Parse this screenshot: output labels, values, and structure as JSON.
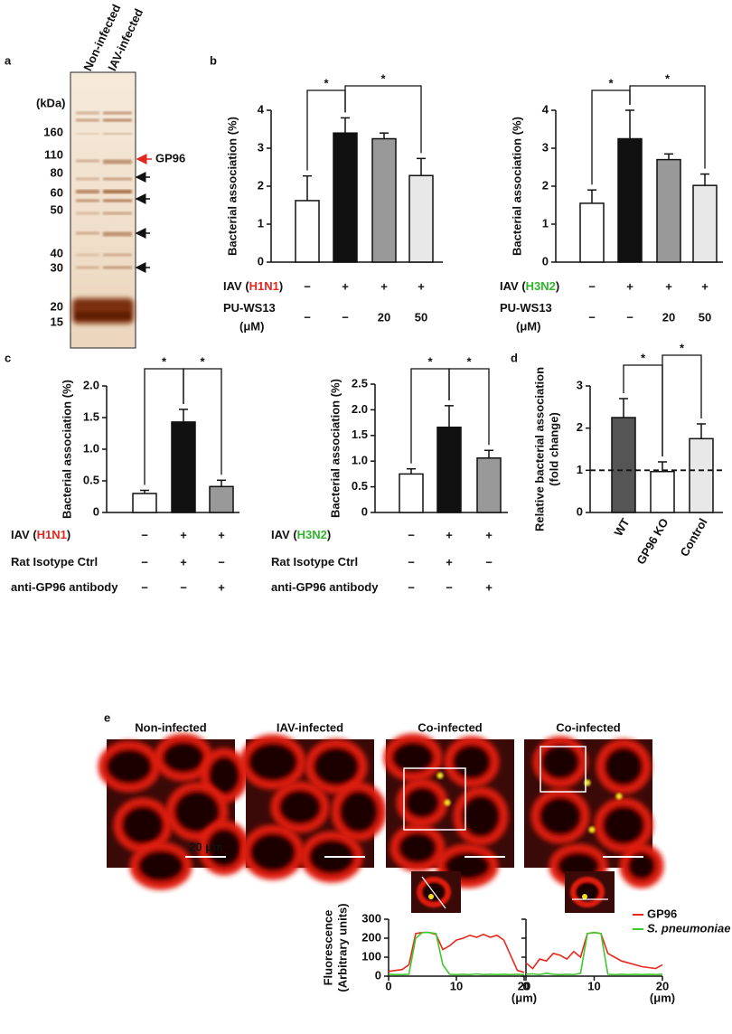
{
  "panel_labels": [
    "a",
    "b",
    "c",
    "d",
    "e"
  ],
  "gel": {
    "lanes": [
      "Non-infected",
      "IAV-infected"
    ],
    "unit": "(kDa)",
    "markers": [
      160,
      110,
      80,
      60,
      50,
      40,
      30,
      20,
      15
    ],
    "band": "GP96",
    "band_color": "#e5261f"
  },
  "microscopy": {
    "titles": [
      "Non-infected",
      "IAV-infected",
      "Co-infected",
      "Co-infected"
    ],
    "scale_bar": "20 μm"
  },
  "chart_data": [
    {
      "type": "bar",
      "ylabel": "Bacterial association (%)",
      "ylim": [
        0,
        4
      ],
      "yticks": [
        0,
        1,
        2,
        3,
        4
      ],
      "values": [
        1.62,
        3.4,
        3.25,
        2.28
      ],
      "errors": [
        0.65,
        0.4,
        0.15,
        0.45
      ],
      "colors": [
        "#ffffff",
        "#111111",
        "#999999",
        "#e8e8e8"
      ],
      "significance": [
        "*",
        "*"
      ],
      "conditions": [
        {
          "label": [
            "IAV (",
            "H1N1",
            ")"
          ],
          "highlight_color": "#e5261f",
          "values": [
            "−",
            "+",
            "+",
            "+"
          ]
        },
        {
          "label": [
            "PU-WS13"
          ],
          "sublabel": "(μM)",
          "values": [
            "−",
            "−",
            20,
            50
          ]
        }
      ]
    },
    {
      "type": "bar",
      "ylabel": "Bacterial association (%)",
      "ylim": [
        0,
        4
      ],
      "yticks": [
        0,
        1,
        2,
        3,
        4
      ],
      "values": [
        1.55,
        3.25,
        2.7,
        2.02
      ],
      "errors": [
        0.35,
        0.75,
        0.15,
        0.3
      ],
      "colors": [
        "#ffffff",
        "#111111",
        "#999999",
        "#e8e8e8"
      ],
      "significance": [
        "*",
        "*"
      ],
      "conditions": [
        {
          "label": [
            "IAV (",
            "H3N2",
            ")"
          ],
          "highlight_color": "#2fb52a",
          "values": [
            "−",
            "+",
            "+",
            "+"
          ]
        },
        {
          "label": [
            "PU-WS13"
          ],
          "sublabel": "(μM)",
          "values": [
            "−",
            "−",
            20,
            50
          ]
        }
      ]
    },
    {
      "type": "bar",
      "ylabel": "Bacterial association (%)",
      "ylim": [
        0,
        2
      ],
      "yticks": [
        0,
        0.5,
        {
          "value": 1,
          "label": "1.0"
        },
        1.5,
        {
          "value": 2,
          "label": "2.0"
        }
      ],
      "values": [
        0.3,
        1.43,
        0.41
      ],
      "errors": [
        0.05,
        0.2,
        0.1
      ],
      "colors": [
        "#ffffff",
        "#111111",
        "#999999"
      ],
      "significance": [
        "*",
        "*"
      ],
      "conditions": [
        {
          "label": [
            "IAV (",
            "H1N1",
            ")"
          ],
          "highlight_color": "#e5261f",
          "values": [
            "−",
            "+",
            "+"
          ]
        },
        {
          "label": [
            "Rat Isotype Ctrl"
          ],
          "values": [
            "−",
            "+",
            "−"
          ]
        },
        {
          "label": [
            "anti-GP96 antibody"
          ],
          "values": [
            "−",
            "−",
            "+"
          ]
        }
      ]
    },
    {
      "type": "bar",
      "ylabel": "Bacterial association (%)",
      "ylim": [
        0,
        2.5
      ],
      "yticks": [
        0,
        0.5,
        {
          "value": 1,
          "label": "1.0"
        },
        1.5,
        {
          "value": 2,
          "label": "2.0"
        },
        2.5
      ],
      "values": [
        0.75,
        1.66,
        1.06
      ],
      "errors": [
        0.1,
        0.42,
        0.15
      ],
      "colors": [
        "#ffffff",
        "#111111",
        "#999999"
      ],
      "significance": [
        "*",
        "*"
      ],
      "conditions": [
        {
          "label": [
            "IAV (",
            "H3N2",
            ")"
          ],
          "highlight_color": "#2fb52a",
          "values": [
            "−",
            "+",
            "+"
          ]
        },
        {
          "label": [
            "Rat Isotype Ctrl"
          ],
          "values": [
            "−",
            "+",
            "−"
          ]
        },
        {
          "label": [
            "anti-GP96 antibody"
          ],
          "values": [
            "−",
            "−",
            "+"
          ]
        }
      ]
    },
    {
      "type": "bar",
      "ylabel": [
        "Relative bacterial association",
        "(fold change)"
      ],
      "ylim": [
        0,
        3
      ],
      "yticks": [
        0,
        1,
        2,
        3
      ],
      "categories": [
        "WT",
        "GP96 KO",
        "Control"
      ],
      "values": [
        2.25,
        0.97,
        1.75
      ],
      "errors": [
        0.45,
        0.23,
        0.35
      ],
      "colors": [
        "#555555",
        "#ffffff",
        "#e8e8e8"
      ],
      "significance": [
        "*",
        "*"
      ],
      "reference_line": 1
    },
    {
      "type": "line",
      "ylabel": [
        "Fluorescence",
        "(Arbitrary units)"
      ],
      "xlabel": "(μm)",
      "xlim": [
        0,
        20
      ],
      "xticks": [
        0,
        10,
        20
      ],
      "ylim": [
        0,
        300
      ],
      "yticks": [
        0,
        100,
        200,
        300
      ],
      "legend": "top-right",
      "x": [
        0,
        1,
        2,
        3,
        4,
        5,
        6,
        7,
        8,
        9,
        10,
        11,
        12,
        13,
        14,
        15,
        16,
        17,
        18,
        19,
        20
      ],
      "series": [
        {
          "name": "GP96",
          "color": "#e8281e",
          "values": [
            25,
            30,
            35,
            60,
            225,
            230,
            230,
            220,
            140,
            160,
            190,
            200,
            215,
            205,
            220,
            205,
            215,
            190,
            110,
            30,
            20
          ]
        },
        {
          "name": "S. pneumoniae",
          "color": "#3ec92b",
          "values": [
            10,
            8,
            8,
            10,
            200,
            230,
            230,
            225,
            60,
            10,
            8,
            10,
            8,
            12,
            8,
            10,
            8,
            10,
            8,
            10,
            8
          ]
        }
      ]
    },
    {
      "type": "line",
      "xlabel": "(μm)",
      "xlim": [
        0,
        20
      ],
      "xticks": [
        0,
        10,
        20
      ],
      "ylim": [
        0,
        300
      ],
      "yticks": [
        0,
        100,
        200,
        300
      ],
      "x": [
        0,
        1,
        2,
        3,
        4,
        5,
        6,
        7,
        8,
        9,
        10,
        11,
        12,
        13,
        14,
        15,
        16,
        17,
        18,
        19,
        20
      ],
      "series": [
        {
          "color": "#e8281e",
          "values": [
            70,
            40,
            90,
            80,
            120,
            110,
            90,
            130,
            100,
            225,
            230,
            225,
            120,
            100,
            80,
            70,
            60,
            50,
            45,
            40,
            60
          ]
        },
        {
          "color": "#3ec92b",
          "values": [
            10,
            12,
            8,
            15,
            10,
            8,
            10,
            8,
            15,
            225,
            230,
            225,
            10,
            8,
            10,
            8,
            10,
            8,
            10,
            8,
            10
          ]
        }
      ]
    }
  ]
}
